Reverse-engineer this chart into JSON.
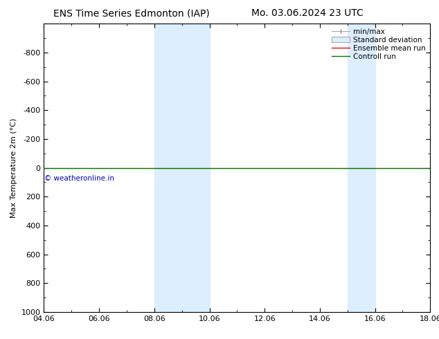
{
  "title_left": "ENS Time Series Edmonton (IAP)",
  "title_right": "Mo. 03.06.2024 23 UTC",
  "ylabel": "Max Temperature 2m (°C)",
  "ylim_top": -1000,
  "ylim_bottom": 1000,
  "yticks": [
    -800,
    -600,
    -400,
    -200,
    0,
    200,
    400,
    600,
    800,
    1000
  ],
  "xtick_labels": [
    "04.06",
    "06.06",
    "08.06",
    "10.06",
    "12.06",
    "14.06",
    "16.06",
    "18.06"
  ],
  "xtick_positions": [
    0,
    2,
    4,
    6,
    8,
    10,
    12,
    14
  ],
  "xlim": [
    0,
    14
  ],
  "shaded_bands": [
    {
      "x_start": 4,
      "x_end": 6
    },
    {
      "x_start": 11,
      "x_end": 12
    }
  ],
  "band_color": "#ddeeff",
  "control_run_y": 0,
  "control_run_color": "#007700",
  "ensemble_mean_color": "#ff0000",
  "watermark": "© weatheronline.in",
  "watermark_color": "#0000bb",
  "bg_color": "#ffffff",
  "title_fontsize": 10,
  "tick_label_fontsize": 8,
  "ylabel_fontsize": 8,
  "legend_fontsize": 7.5
}
